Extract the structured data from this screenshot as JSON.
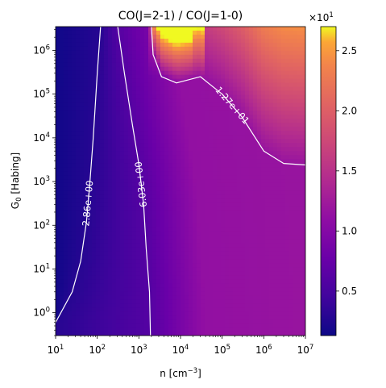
{
  "chart_data": {
    "type": "heatmap",
    "title": "CO(J=2-1) / CO(J=1-0)",
    "xlabel": {
      "main": "n [cm",
      "sup": "−3",
      "tail": "]"
    },
    "ylabel": {
      "main": "G",
      "sub": "0",
      "tail": " [Habing]"
    },
    "x_scale": "log",
    "y_scale": "log",
    "xlim": [
      10,
      10000000
    ],
    "ylim": [
      0.3,
      3500000
    ],
    "x_ticks": [
      {
        "value": 10,
        "mant": "10",
        "exp": "1"
      },
      {
        "value": 100,
        "mant": "10",
        "exp": "2"
      },
      {
        "value": 1000,
        "mant": "10",
        "exp": "3"
      },
      {
        "value": 10000,
        "mant": "10",
        "exp": "4"
      },
      {
        "value": 100000,
        "mant": "10",
        "exp": "5"
      },
      {
        "value": 1000000,
        "mant": "10",
        "exp": "6"
      },
      {
        "value": 10000000,
        "mant": "10",
        "exp": "7"
      }
    ],
    "y_ticks": [
      {
        "value": 1,
        "mant": "10",
        "exp": "0"
      },
      {
        "value": 10,
        "mant": "10",
        "exp": "1"
      },
      {
        "value": 100,
        "mant": "10",
        "exp": "2"
      },
      {
        "value": 1000,
        "mant": "10",
        "exp": "3"
      },
      {
        "value": 10000,
        "mant": "10",
        "exp": "4"
      },
      {
        "value": 100000,
        "mant": "10",
        "exp": "5"
      },
      {
        "value": 1000000,
        "mant": "10",
        "exp": "6"
      }
    ],
    "colormap": "plasma",
    "colorbar": {
      "range": [
        1.3,
        27.0
      ],
      "scale_label": {
        "mant": "×10",
        "exp": "1"
      },
      "ticks": [
        {
          "value": 5,
          "label": "0.5"
        },
        {
          "value": 10,
          "label": "1.0"
        },
        {
          "value": 15,
          "label": "1.5"
        },
        {
          "value": 20,
          "label": "2.0"
        },
        {
          "value": 25,
          "label": "2.5"
        }
      ]
    },
    "contours": [
      {
        "label": "2.86e+00",
        "points": [
          [
            10,
            0.6
          ],
          [
            25,
            3
          ],
          [
            40,
            15
          ],
          [
            55,
            120
          ],
          [
            65,
            700
          ],
          [
            80,
            10000
          ],
          [
            100,
            300000
          ],
          [
            120,
            3500000
          ]
        ]
      },
      {
        "label": "6.03e+00",
        "points": [
          [
            1900,
            0.3
          ],
          [
            1800,
            3
          ],
          [
            1500,
            30
          ],
          [
            1300,
            300
          ],
          [
            1000,
            2500
          ],
          [
            700,
            20000
          ],
          [
            450,
            300000
          ],
          [
            310,
            3500000
          ]
        ]
      },
      {
        "label": "1.27e+01",
        "points": [
          [
            2000,
            3500000
          ],
          [
            2200,
            800000
          ],
          [
            3500,
            250000
          ],
          [
            8000,
            180000
          ],
          [
            30000,
            250000
          ],
          [
            100000,
            100000
          ],
          [
            300000,
            30000
          ],
          [
            1000000,
            5000
          ],
          [
            3000000,
            2600
          ],
          [
            10000000,
            2400
          ]
        ]
      }
    ],
    "grid": false
  }
}
